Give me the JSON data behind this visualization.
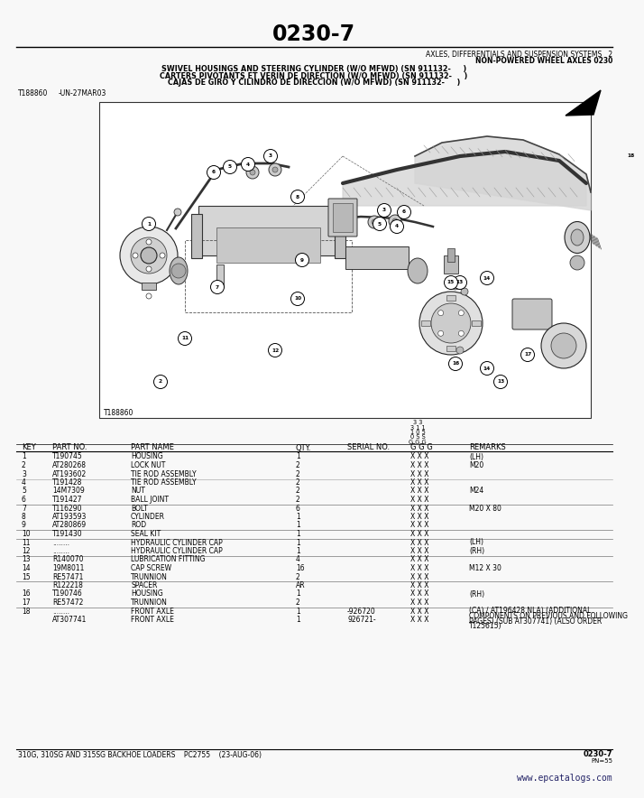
{
  "page_number": "0230-7",
  "section": "AXLES, DIFFERENTIALS AND SUSPENSION SYSTEMS   2",
  "subsection": "NON-POWERED WHEEL AXLES 0230",
  "title_lines": [
    "SWIVEL HOUSINGS AND STEERING CYLINDER (W/O MFWD) (SN 911132-     )",
    "CARTERS PIVOTANTS ET VERIN DE DIRECTION (W/O MFWD) (SN 911132-     )",
    "CAJAS DE GIRO Y CILINDRO DE DIRECCION (W/O MFWD) (SN 911132-     )"
  ],
  "drawing_ref": "T188860",
  "drawing_date": "-UN-27MAR03",
  "serial_header_lines": [
    "3 3",
    "3 1 1",
    "1 0 5",
    "0 S S",
    "G G G"
  ],
  "parts": [
    {
      "key": "1",
      "part_no": "T190745",
      "part_name": "HOUSING",
      "qty": "1",
      "serial": "",
      "ggg": "X X X",
      "remarks": "(LH)"
    },
    {
      "key": "2",
      "part_no": "AT280268",
      "part_name": "LOCK NUT",
      "qty": "2",
      "serial": "",
      "ggg": "X X X",
      "remarks": "M20"
    },
    {
      "key": "3",
      "part_no": "AT193602",
      "part_name": "TIE ROD ASSEMBLY",
      "qty": "2",
      "serial": "",
      "ggg": "X X X",
      "remarks": ""
    },
    {
      "key": "4",
      "part_no": "T191428",
      "part_name": "TIE ROD ASSEMBLY",
      "qty": "2",
      "serial": "",
      "ggg": "X X X",
      "remarks": ""
    },
    {
      "key": "5",
      "part_no": "14M7309",
      "part_name": "NUT",
      "qty": "2",
      "serial": "",
      "ggg": "X X X",
      "remarks": "M24"
    },
    {
      "key": "6",
      "part_no": "T191427",
      "part_name": "BALL JOINT",
      "qty": "2",
      "serial": "",
      "ggg": "X X X",
      "remarks": ""
    },
    {
      "key": "7",
      "part_no": "T116290",
      "part_name": "BOLT",
      "qty": "6",
      "serial": "",
      "ggg": "X X X",
      "remarks": "M20 X 80"
    },
    {
      "key": "8",
      "part_no": "AT193593",
      "part_name": "CYLINDER",
      "qty": "1",
      "serial": "",
      "ggg": "X X X",
      "remarks": ""
    },
    {
      "key": "9",
      "part_no": "AT280869",
      "part_name": "ROD",
      "qty": "1",
      "serial": "",
      "ggg": "X X X",
      "remarks": ""
    },
    {
      "key": "10",
      "part_no": "T191430",
      "part_name": "SEAL KIT",
      "qty": "1",
      "serial": "",
      "ggg": "X X X",
      "remarks": ""
    },
    {
      "key": "11",
      "part_no": "........",
      "part_name": "HYDRAULIC CYLINDER CAP",
      "qty": "1",
      "serial": "",
      "ggg": "X X X",
      "remarks": "(LH)"
    },
    {
      "key": "12",
      "part_no": "........",
      "part_name": "HYDRAULIC CYLINDER CAP",
      "qty": "1",
      "serial": "",
      "ggg": "X X X",
      "remarks": "(RH)"
    },
    {
      "key": "13",
      "part_no": "R140070",
      "part_name": "LUBRICATION FITTING",
      "qty": "4",
      "serial": "",
      "ggg": "X X X",
      "remarks": ""
    },
    {
      "key": "14",
      "part_no": "19M8011",
      "part_name": "CAP SCREW",
      "qty": "16",
      "serial": "",
      "ggg": "X X X",
      "remarks": "M12 X 30"
    },
    {
      "key": "15",
      "part_no": "RE57471",
      "part_name": "TRUNNION",
      "qty": "2",
      "serial": "",
      "ggg": "X X X",
      "remarks": ""
    },
    {
      "key": "",
      "part_no": "R122218",
      "part_name": "SPACER",
      "qty": "AR",
      "serial": "",
      "ggg": "X X X",
      "remarks": ""
    },
    {
      "key": "16",
      "part_no": "T190746",
      "part_name": "HOUSING",
      "qty": "1",
      "serial": "",
      "ggg": "X X X",
      "remarks": "(RH)"
    },
    {
      "key": "17",
      "part_no": "RE57472",
      "part_name": "TRUNNION",
      "qty": "2",
      "serial": "",
      "ggg": "X X X",
      "remarks": ""
    },
    {
      "key": "18",
      "part_no": "........",
      "part_name": "FRONT AXLE",
      "qty": "1",
      "serial": "-926720",
      "ggg": "X X X",
      "remarks": "(CA) / AT196428 NLA) (ADDITIONAL COMPONENTS ON PREVIOUS AND FOLLOWING PAGES) (SUB AT307741) (ALSO ORDER T125615)"
    },
    {
      "key": "",
      "part_no": "AT307741",
      "part_name": "FRONT AXLE",
      "qty": "1",
      "serial": "926721-",
      "ggg": "X X X",
      "remarks": ""
    }
  ],
  "separator_after_keys": [
    "6",
    "9",
    "10",
    "12",
    "15",
    "17"
  ],
  "footer_left": "310G, 310SG AND 315SG BACKHOE LOADERS    PC2755    (23-AUG-06)",
  "footer_url": "www.epcatalogs.com",
  "bg_color": "#f8f8f8",
  "line_color": "#000000",
  "col_x": {
    "KEY": 14,
    "PART_NO": 48,
    "PART_NAME": 135,
    "QTY": 318,
    "SERIAL": 375,
    "GGG": 445,
    "REMARKS": 510
  }
}
